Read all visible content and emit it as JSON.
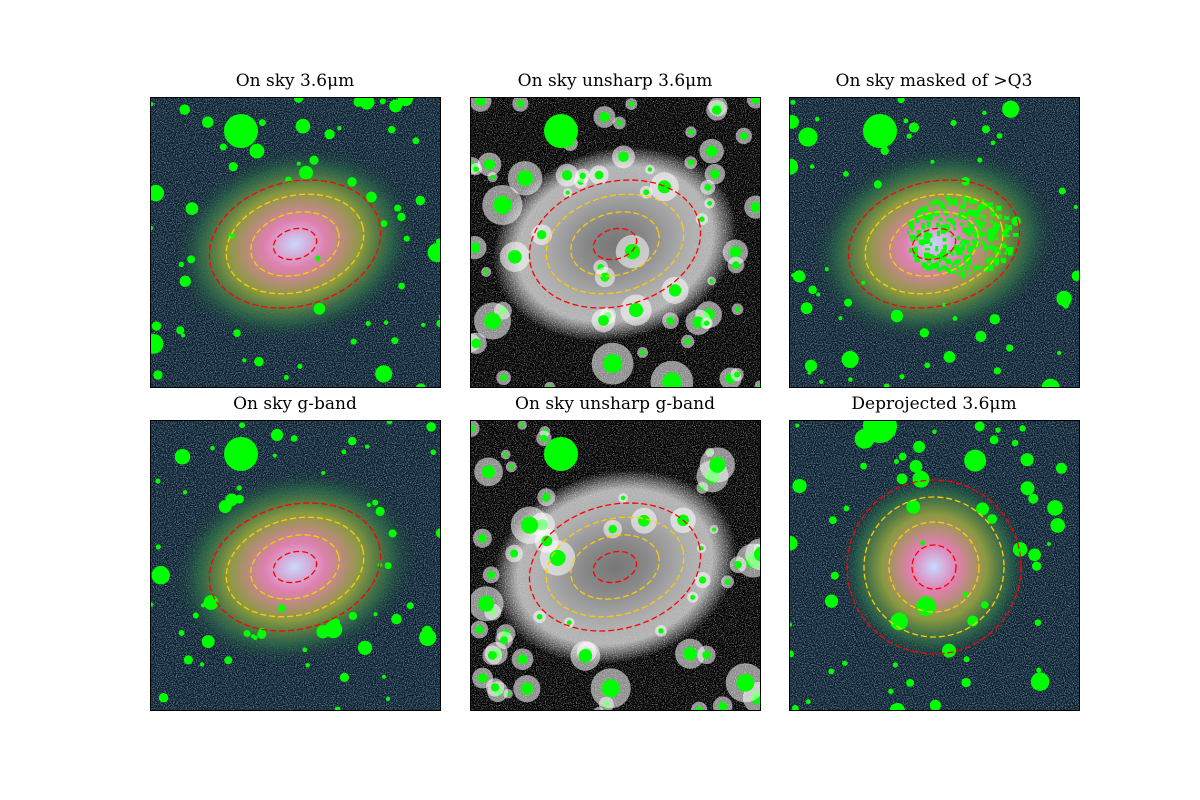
{
  "figure": {
    "panels": [
      {
        "title": "On sky 3.6μm",
        "style": "color",
        "deprojected": false,
        "masked_q3": false
      },
      {
        "title": "On sky unsharp 3.6μm",
        "style": "unsharp",
        "deprojected": false,
        "masked_q3": false
      },
      {
        "title": "On sky masked of >Q3",
        "style": "color",
        "deprojected": false,
        "masked_q3": true
      },
      {
        "title": "On sky g-band",
        "style": "color",
        "deprojected": false,
        "masked_q3": false
      },
      {
        "title": "On sky unsharp g-band",
        "style": "unsharp",
        "deprojected": false,
        "masked_q3": false
      },
      {
        "title": "Deprojected 3.6μm",
        "style": "color",
        "deprojected": true,
        "masked_q3": false
      }
    ],
    "colors": {
      "mask": "#00ff00",
      "ellipse_outer_inner": "#ff0000",
      "ellipse_middle": "#ffcc00",
      "sky_background": "#0b1a2a"
    }
  }
}
